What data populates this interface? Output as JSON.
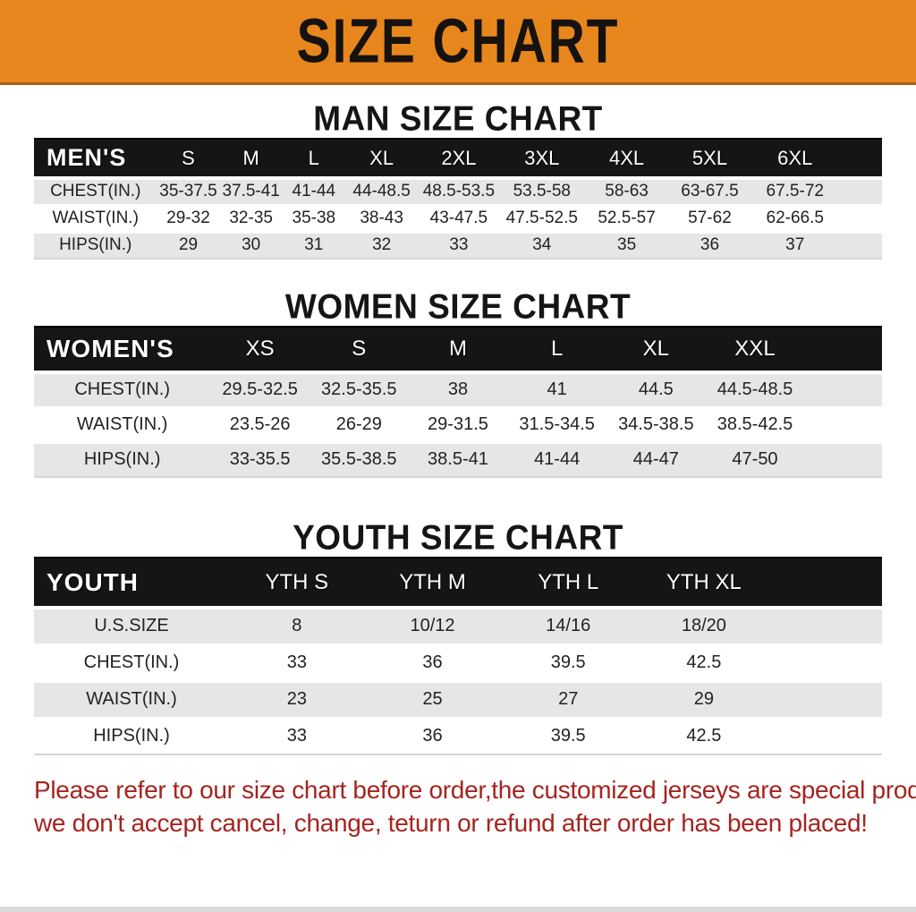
{
  "banner": {
    "title": "SIZE CHART",
    "bg_color": "#E8861E"
  },
  "colors": {
    "banner_bg": "#E8861E",
    "table_header_bg": "#171513",
    "row_alt_gray": "#e6e6e6",
    "disclaimer_red": "#A5241F"
  },
  "sections": {
    "men": {
      "heading": "MAN SIZE CHART",
      "columns": [
        "MEN'S",
        "S",
        "M",
        "L",
        "XL",
        "2XL",
        "3XL",
        "4XL",
        "5XL",
        "6XL"
      ],
      "rows": [
        {
          "label": "CHEST(IN.)",
          "values": [
            "35-37.5",
            "37.5-41",
            "41-44",
            "44-48.5",
            "48.5-53.5",
            "53.5-58",
            "58-63",
            "63-67.5",
            "67.5-72"
          ]
        },
        {
          "label": "WAIST(IN.)",
          "values": [
            "29-32",
            "32-35",
            "35-38",
            "38-43",
            "43-47.5",
            "47.5-52.5",
            "52.5-57",
            "57-62",
            "62-66.5"
          ]
        },
        {
          "label": "HIPS(IN.)",
          "values": [
            "29",
            "30",
            "31",
            "32",
            "33",
            "34",
            "35",
            "36",
            "37"
          ]
        }
      ]
    },
    "women": {
      "heading": "WOMEN SIZE CHART",
      "columns": [
        "WOMEN'S",
        "XS",
        "S",
        "M",
        "L",
        "XL",
        "XXL"
      ],
      "rows": [
        {
          "label": "CHEST(IN.)",
          "values": [
            "29.5-32.5",
            "32.5-35.5",
            "38",
            "41",
            "44.5",
            "44.5-48.5"
          ]
        },
        {
          "label": "WAIST(IN.)",
          "values": [
            "23.5-26",
            "26-29",
            "29-31.5",
            "31.5-34.5",
            "34.5-38.5",
            "38.5-42.5"
          ]
        },
        {
          "label": "HIPS(IN.)",
          "values": [
            "33-35.5",
            "35.5-38.5",
            "38.5-41",
            "41-44",
            "44-47",
            "47-50"
          ]
        }
      ]
    },
    "youth": {
      "heading": "YOUTH SIZE CHART",
      "columns": [
        "YOUTH",
        "YTH S",
        "YTH M",
        "YTH L",
        "YTH XL"
      ],
      "rows": [
        {
          "label": "U.S.SIZE",
          "values": [
            "8",
            "10/12",
            "14/16",
            "18/20"
          ]
        },
        {
          "label": "CHEST(IN.)",
          "values": [
            "33",
            "36",
            "39.5",
            "42.5"
          ]
        },
        {
          "label": "WAIST(IN.)",
          "values": [
            "23",
            "25",
            "27",
            "29"
          ]
        },
        {
          "label": "HIPS(IN.)",
          "values": [
            "33",
            "36",
            "39.5",
            "42.5"
          ]
        }
      ]
    }
  },
  "disclaimer": {
    "line1": "Please refer to our size chart before order,the customized jerseys are special products,",
    "line2": "we don't accept cancel, change, teturn or refund after order has been placed!"
  }
}
